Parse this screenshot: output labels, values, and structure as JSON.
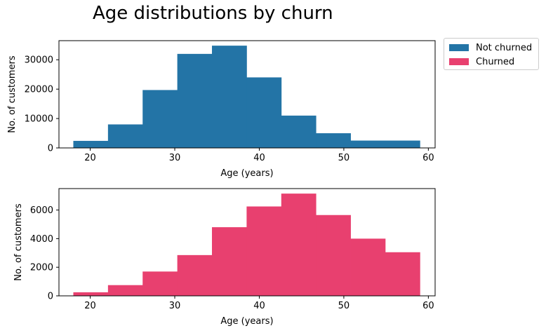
{
  "figure": {
    "title": "Age distributions by churn"
  },
  "legend": {
    "items": [
      {
        "label": "Not churned",
        "color": "#2374a6"
      },
      {
        "label": "Churned",
        "color": "#e8406f"
      }
    ],
    "placement": "top-right outside"
  },
  "chart_data": [
    {
      "type": "bar",
      "series_name": "Not churned",
      "color": "#2374a6",
      "bin_edges": [
        18,
        22.1,
        26.2,
        30.3,
        34.4,
        38.5,
        42.6,
        46.7,
        50.8,
        54.9,
        59
      ],
      "values": [
        2400,
        8000,
        19700,
        32000,
        34800,
        24000,
        11000,
        5000,
        2500,
        2500
      ],
      "xlabel": "Age (years)",
      "ylabel": "No. of customers",
      "xlim": [
        16.3,
        60.8
      ],
      "ylim": [
        0,
        36500
      ],
      "xticks": [
        20,
        30,
        40,
        50,
        60
      ],
      "yticks": [
        0,
        10000,
        20000,
        30000
      ],
      "grid": false
    },
    {
      "type": "bar",
      "series_name": "Churned",
      "color": "#e8406f",
      "bin_edges": [
        18,
        22.1,
        26.2,
        30.3,
        34.4,
        38.5,
        42.6,
        46.7,
        50.8,
        54.9,
        59
      ],
      "values": [
        250,
        750,
        1700,
        2850,
        4800,
        6250,
        7150,
        5650,
        4000,
        3050
      ],
      "xlabel": "Age (years)",
      "ylabel": "No. of customers",
      "xlim": [
        16.3,
        60.8
      ],
      "ylim": [
        0,
        7500
      ],
      "xticks": [
        20,
        30,
        40,
        50,
        60
      ],
      "yticks": [
        0,
        2000,
        4000,
        6000
      ],
      "grid": false
    }
  ]
}
